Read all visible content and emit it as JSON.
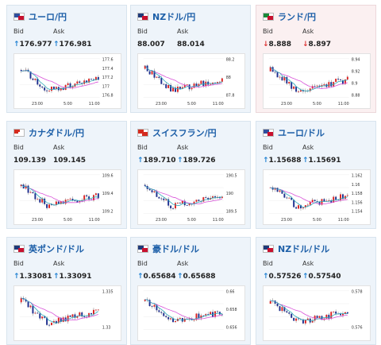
{
  "cards": [
    {
      "pair": "ユーロ/円",
      "bid_label": "Bid",
      "ask_label": "Ask",
      "bid": "176.977",
      "ask": "176.981",
      "dir": "up",
      "flag": [
        "#2f4f9e",
        "#c8102e"
      ],
      "yticks": [
        "177.6",
        "177.4",
        "177.2",
        "177",
        "176.8"
      ],
      "xticks": [
        "23:00",
        "5:00",
        "11:00"
      ]
    },
    {
      "pair": "NZドル/円",
      "bid_label": "Bid",
      "ask_label": "Ask",
      "bid": "88.007",
      "ask": "88.014",
      "dir": "none",
      "flag": [
        "#1f3a7a",
        "#c8102e"
      ],
      "yticks": [
        "88.2",
        "88",
        "87.8"
      ],
      "xticks": [
        "23:00",
        "5:00",
        "11:00"
      ]
    },
    {
      "pair": "ランド/円",
      "bid_label": "Bid",
      "ask_label": "Ask",
      "bid": "8.888",
      "ask": "8.897",
      "dir": "down",
      "flag": [
        "#1b8a3a",
        "#c8102e"
      ],
      "yticks": [
        "8.94",
        "8.92",
        "8.9",
        "8.88"
      ],
      "xticks": [
        "23:00",
        "5:00",
        "11:00"
      ]
    },
    {
      "pair": "カナダドル/円",
      "bid_label": "Bid",
      "ask_label": "Ask",
      "bid": "109.139",
      "ask": "109.145",
      "dir": "none",
      "flag": [
        "#d52b1e",
        "#ffffff"
      ],
      "yticks": [
        "109.6",
        "109.4",
        "109.2"
      ],
      "xticks": [
        "23:00",
        "5:00",
        "11:00"
      ]
    },
    {
      "pair": "スイスフラン/円",
      "bid_label": "Bid",
      "ask_label": "Ask",
      "bid": "189.710",
      "ask": "189.726",
      "dir": "up",
      "flag": [
        "#d52b1e",
        "#d52b1e"
      ],
      "yticks": [
        "190.5",
        "190",
        "189.5"
      ],
      "xticks": [
        "23:00",
        "5:00",
        "11:00"
      ]
    },
    {
      "pair": "ユーロ/ドル",
      "bid_label": "Bid",
      "ask_label": "Ask",
      "bid": "1.15688",
      "ask": "1.15691",
      "dir": "up",
      "flag": [
        "#2f4f9e",
        "#c8102e"
      ],
      "yticks": [
        "1.162",
        "1.16",
        "1.158",
        "1.156",
        "1.154"
      ],
      "xticks": [
        "23:00",
        "5:00",
        "11:00"
      ]
    },
    {
      "pair": "英ポンド/ドル",
      "bid_label": "Bid",
      "ask_label": "Ask",
      "bid": "1.33081",
      "ask": "1.33091",
      "dir": "up",
      "flag": [
        "#1f3a7a",
        "#c8102e"
      ],
      "yticks": [
        "1.335",
        "1.33"
      ],
      "xticks": []
    },
    {
      "pair": "豪ドル/ドル",
      "bid_label": "Bid",
      "ask_label": "Ask",
      "bid": "0.65684",
      "ask": "0.65688",
      "dir": "up",
      "flag": [
        "#1f3a7a",
        "#c8102e"
      ],
      "yticks": [
        "0.66",
        "0.658",
        "0.656"
      ],
      "xticks": []
    },
    {
      "pair": "NZドル/ドル",
      "bid_label": "Bid",
      "ask_label": "Ask",
      "bid": "0.57526",
      "ask": "0.57540",
      "dir": "up",
      "flag": [
        "#1f3a7a",
        "#c8102e"
      ],
      "yticks": [
        "0.578",
        "0.576"
      ],
      "xticks": []
    }
  ],
  "arrows": {
    "up": "↑",
    "down": "↓"
  }
}
